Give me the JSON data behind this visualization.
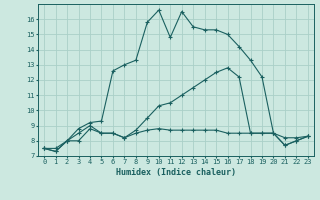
{
  "xlabel": "Humidex (Indice chaleur)",
  "background_color": "#cce8e0",
  "grid_color": "#aad0c8",
  "line_color": "#1a6060",
  "xlim": [
    -0.5,
    23.5
  ],
  "ylim": [
    7,
    17
  ],
  "yticks": [
    7,
    8,
    9,
    10,
    11,
    12,
    13,
    14,
    15,
    16
  ],
  "xticks": [
    0,
    1,
    2,
    3,
    4,
    5,
    6,
    7,
    8,
    9,
    10,
    11,
    12,
    13,
    14,
    15,
    16,
    17,
    18,
    19,
    20,
    21,
    22,
    23
  ],
  "line1_x": [
    0,
    1,
    2,
    3,
    4,
    5,
    6,
    7,
    8,
    9,
    10,
    11,
    12,
    13,
    14,
    15,
    16,
    17,
    18,
    19,
    20,
    21,
    22,
    23
  ],
  "line1_y": [
    7.5,
    7.3,
    8.0,
    8.8,
    9.2,
    9.3,
    12.6,
    13.0,
    13.3,
    15.8,
    16.6,
    14.8,
    16.5,
    15.5,
    15.3,
    15.3,
    15.0,
    14.2,
    13.3,
    12.2,
    8.5,
    7.7,
    8.0,
    8.3
  ],
  "line2_x": [
    0,
    1,
    2,
    3,
    4,
    5,
    6,
    7,
    8,
    9,
    10,
    11,
    12,
    13,
    14,
    15,
    16,
    17,
    18,
    19,
    20,
    21,
    22,
    23
  ],
  "line2_y": [
    7.5,
    7.3,
    8.0,
    8.5,
    9.0,
    8.5,
    8.5,
    8.2,
    8.7,
    9.5,
    10.3,
    10.5,
    11.0,
    11.5,
    12.0,
    12.5,
    12.8,
    12.2,
    8.5,
    8.5,
    8.5,
    7.7,
    8.0,
    8.3
  ],
  "line3_x": [
    0,
    1,
    2,
    3,
    4,
    5,
    6,
    7,
    8,
    9,
    10,
    11,
    12,
    13,
    14,
    15,
    16,
    17,
    18,
    19,
    20,
    21,
    22,
    23
  ],
  "line3_y": [
    7.5,
    7.5,
    8.0,
    8.0,
    8.8,
    8.5,
    8.5,
    8.2,
    8.5,
    8.7,
    8.8,
    8.7,
    8.7,
    8.7,
    8.7,
    8.7,
    8.5,
    8.5,
    8.5,
    8.5,
    8.5,
    8.2,
    8.2,
    8.3
  ]
}
